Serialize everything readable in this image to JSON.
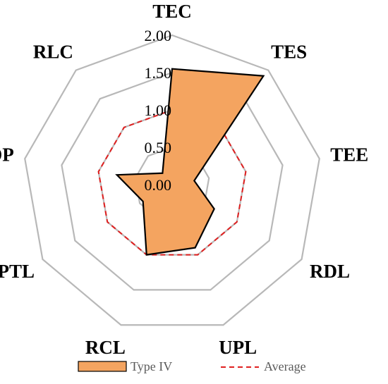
{
  "chart_data": {
    "type": "radar",
    "categories": [
      "TEC",
      "TES",
      "TEE",
      "RDL",
      "UPL",
      "RCL",
      "PTL",
      "TOP",
      "RLC"
    ],
    "series": [
      {
        "name": "Type IV",
        "values": [
          1.55,
          1.9,
          0.3,
          0.65,
          0.9,
          1.0,
          0.45,
          0.75,
          0.2
        ],
        "fill": "#f4a460",
        "stroke": "#000000"
      },
      {
        "name": "Average",
        "values": [
          1.0,
          1.0,
          1.0,
          1.0,
          1.0,
          1.0,
          1.0,
          1.0,
          1.0
        ],
        "stroke": "#e02020",
        "dashed": true
      }
    ],
    "rlim": [
      0,
      2.0
    ],
    "ticks": [
      "0.00",
      "0.50",
      "1.00",
      "1.50",
      "2.00"
    ],
    "grid": true,
    "legend_position": "bottom"
  }
}
